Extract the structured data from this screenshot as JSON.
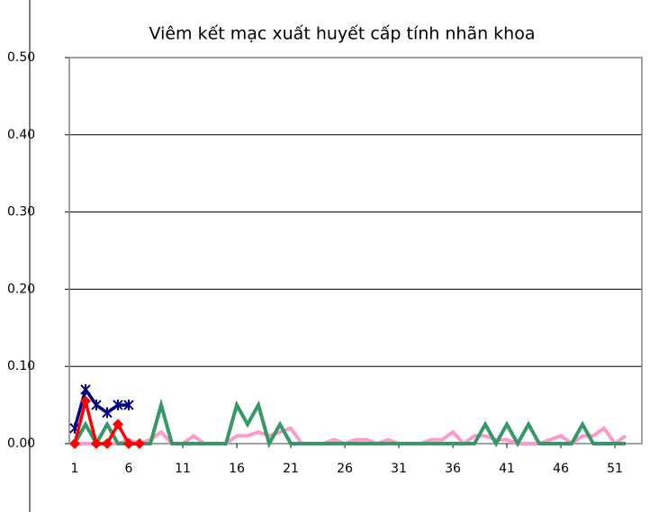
{
  "chart_data": {
    "type": "line",
    "title": "Viêm kết mạc xuất huyết cấp tính nhãn khoa",
    "x": [
      1,
      2,
      3,
      4,
      5,
      6,
      7,
      8,
      9,
      10,
      11,
      12,
      13,
      14,
      15,
      16,
      17,
      18,
      19,
      20,
      21,
      22,
      23,
      24,
      25,
      26,
      27,
      28,
      29,
      30,
      31,
      32,
      33,
      34,
      35,
      36,
      37,
      38,
      39,
      40,
      41,
      42,
      43,
      44,
      45,
      46,
      47,
      48,
      49,
      50,
      51,
      52
    ],
    "xlim": [
      0.5,
      53.5
    ],
    "xticks": [
      1,
      6,
      11,
      16,
      21,
      26,
      31,
      36,
      41,
      46,
      51
    ],
    "ylim": [
      0,
      0.5
    ],
    "yticks": [
      {
        "value": 0,
        "label": "0.00"
      },
      {
        "value": 0.1,
        "label": "0.10"
      },
      {
        "value": 0.2,
        "label": "0.20"
      },
      {
        "value": 0.3,
        "label": "0.30"
      },
      {
        "value": 0.4,
        "label": "0.40"
      },
      {
        "value": 0.5,
        "label": "0.50"
      }
    ],
    "grid": true,
    "series": [
      {
        "color": "#ff99cc",
        "marker": "none",
        "values": [
          0,
          0,
          0,
          0,
          0,
          0.005,
          0,
          0.005,
          0.015,
          0,
          0,
          0.01,
          0,
          0,
          0,
          0.01,
          0.01,
          0.015,
          0.01,
          0.015,
          0.02,
          0,
          0,
          0,
          0.005,
          0,
          0.005,
          0.005,
          0,
          0.005,
          0,
          0,
          0,
          0.005,
          0.005,
          0.015,
          0,
          0.01,
          0.01,
          0.005,
          0.005,
          0,
          0,
          0,
          0.005,
          0.01,
          0,
          0.01,
          0.01,
          0.02,
          0,
          0.01
        ]
      },
      {
        "color": "#339966",
        "marker": "none",
        "values": [
          0,
          0.025,
          0,
          0.025,
          0,
          0,
          0,
          0,
          0.05,
          0,
          0,
          0,
          0,
          0,
          0,
          0.05,
          0.025,
          0.05,
          0,
          0.025,
          0,
          0,
          0,
          0,
          0,
          0,
          0,
          0,
          0,
          0,
          0,
          0,
          0,
          0,
          0,
          0,
          0,
          0,
          0.025,
          0,
          0.025,
          0,
          0.025,
          0,
          0,
          0,
          0,
          0.025,
          0,
          0,
          0,
          0
        ]
      },
      {
        "color": "#000080",
        "marker": "asterisk",
        "values": [
          0.02,
          0.07,
          0.05,
          0.04,
          0.05,
          0.05,
          null,
          null,
          null,
          null,
          null,
          null,
          null,
          null,
          null,
          null,
          null,
          null,
          null,
          null,
          null,
          null,
          null,
          null,
          null,
          null,
          null,
          null,
          null,
          null,
          null,
          null,
          null,
          null,
          null,
          null,
          null,
          null,
          null,
          null,
          null,
          null,
          null,
          null,
          null,
          null,
          null,
          null,
          null,
          null,
          null,
          null
        ]
      },
      {
        "color": "#ff0000",
        "marker": "diamond",
        "values": [
          0,
          0.055,
          0,
          0,
          0.025,
          0,
          0,
          null,
          null,
          null,
          null,
          null,
          null,
          null,
          null,
          null,
          null,
          null,
          null,
          null,
          null,
          null,
          null,
          null,
          null,
          null,
          null,
          null,
          null,
          null,
          null,
          null,
          null,
          null,
          null,
          null,
          null,
          null,
          null,
          null,
          null,
          null,
          null,
          null,
          null,
          null,
          null,
          null,
          null,
          null,
          null,
          null
        ]
      }
    ]
  }
}
